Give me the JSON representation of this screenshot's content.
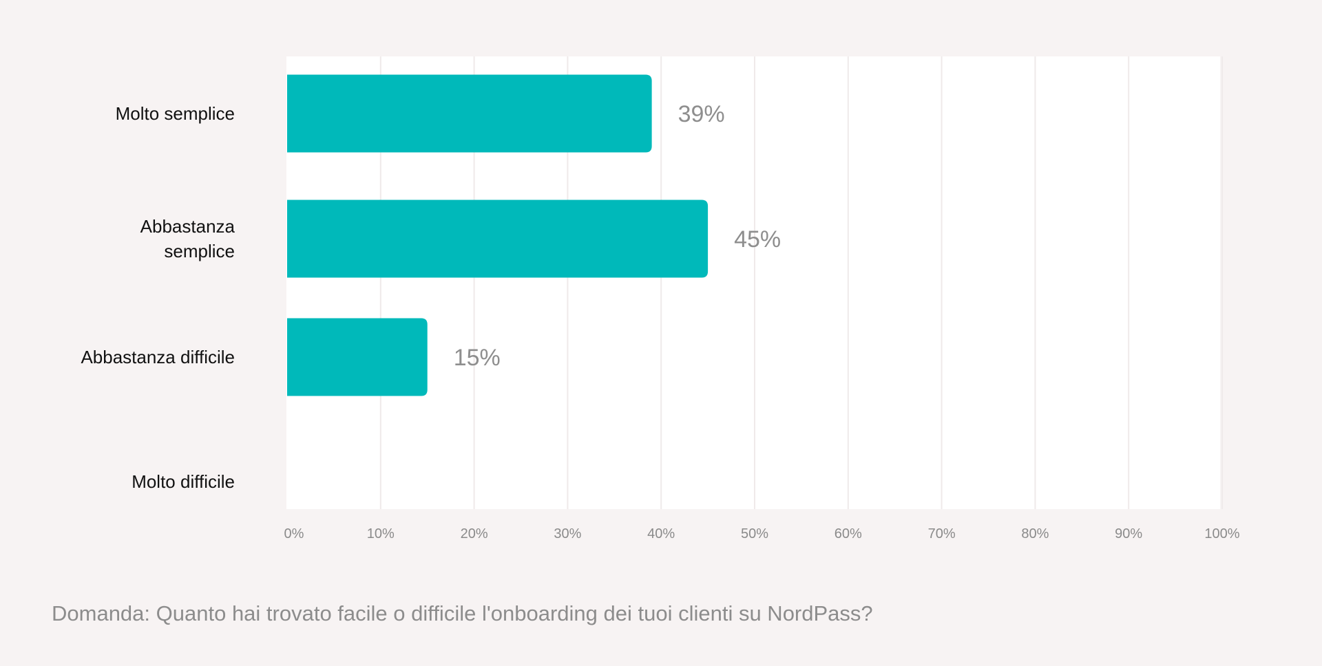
{
  "chart_data": {
    "type": "bar",
    "orientation": "horizontal",
    "categories": [
      "Molto semplice",
      "Abbastanza semplice",
      "Abbastanza difficile",
      "Molto difficile"
    ],
    "category_lines": [
      [
        "Molto semplice"
      ],
      [
        "Abbastanza",
        "semplice"
      ],
      [
        "Abbastanza difficile"
      ],
      [
        "Molto difficile"
      ]
    ],
    "values": [
      39,
      45,
      15,
      0
    ],
    "value_labels": [
      "39%",
      "45%",
      "15%",
      ""
    ],
    "xlim": [
      0,
      100
    ],
    "x_ticks": [
      0,
      10,
      20,
      30,
      40,
      50,
      60,
      70,
      80,
      90,
      100
    ],
    "x_tick_labels": [
      "0%",
      "10%",
      "20%",
      "30%",
      "40%",
      "50%",
      "60%",
      "70%",
      "80%",
      "90%",
      "100%"
    ],
    "grid": "vertical",
    "title": "",
    "xlabel": "",
    "ylabel": "",
    "bar_color": "#00b9ba",
    "grid_color": "#efeaea",
    "tick_label_color": "#8a8a8a",
    "value_label_color": "#8e8e8e"
  },
  "caption": "Domanda: Quanto hai trovato facile o difficile l'onboarding dei tuoi clienti su NordPass?"
}
